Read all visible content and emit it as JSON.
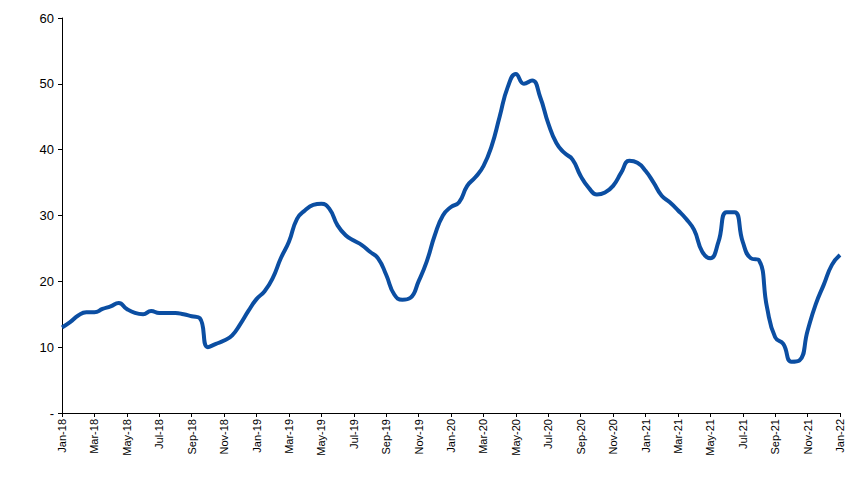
{
  "chart_data": {
    "type": "line",
    "categories": [
      "Jan-18",
      null,
      null,
      null,
      "Mar-18",
      null,
      null,
      null,
      "May-18",
      null,
      null,
      null,
      "Jul-18",
      null,
      null,
      null,
      "Sep-18",
      null,
      null,
      null,
      "Nov-18",
      null,
      null,
      null,
      "Jan-19",
      null,
      null,
      null,
      "Mar-19",
      null,
      null,
      null,
      "May-19",
      null,
      null,
      null,
      "Jul-19",
      null,
      null,
      null,
      "Sep-19",
      null,
      null,
      null,
      "Nov-19",
      null,
      null,
      null,
      "Jan-20",
      null,
      null,
      null,
      "Mar-20",
      null,
      null,
      null,
      "May-20",
      null,
      null,
      null,
      "Jul-20",
      null,
      null,
      null,
      "Sep-20",
      null,
      null,
      null,
      "Nov-20",
      null,
      null,
      null,
      "Jan-21",
      null,
      null,
      null,
      "Mar-21",
      null,
      null,
      null,
      "May-21",
      null,
      null,
      null,
      "Jul-21",
      null,
      null,
      null,
      "Sep-21",
      null,
      null,
      null,
      "Nov-21",
      null,
      null,
      null,
      "Jan-22"
    ],
    "values": [
      13,
      13.8,
      14.8,
      15.3,
      15.3,
      15.8,
      16.2,
      16.7,
      15.8,
      15.2,
      15.0,
      15.5,
      15.2,
      15.2,
      15.2,
      15.0,
      14.7,
      14.4,
      10.0,
      10.5,
      11.0,
      11.8,
      13.5,
      15.5,
      17.3,
      18.5,
      20.5,
      23.5,
      26.0,
      29.5,
      30.8,
      31.6,
      31.8,
      31.0,
      28.5,
      27.0,
      26.2,
      25.5,
      24.5,
      23.5,
      21.0,
      18.0,
      17.2,
      17.5,
      20.0,
      23.0,
      27.0,
      30.0,
      31.3,
      32.0,
      34.5,
      35.8,
      37.5,
      40.5,
      45.0,
      49.5,
      51.5,
      50.0,
      50.5,
      48.0,
      44.0,
      41.0,
      39.5,
      38.5,
      36.0,
      34.2,
      33.2,
      33.5,
      34.5,
      36.5,
      38.3,
      38.0,
      36.8,
      35.0,
      33.0,
      32.0,
      30.8,
      29.5,
      27.8,
      24.5,
      23.5,
      26.0,
      30.5,
      30.5,
      26.0,
      23.5,
      23.2,
      16.0,
      11.5,
      10.5,
      7.8,
      8.0,
      12.5,
      16.5,
      19.5,
      22.5,
      24.0
    ],
    "color": "#0b4ea2",
    "ylim": [
      0,
      60
    ],
    "yticks": [
      {
        "value": 0,
        "label": "-"
      },
      10,
      20,
      30,
      40,
      50,
      60
    ],
    "grid": false
  }
}
